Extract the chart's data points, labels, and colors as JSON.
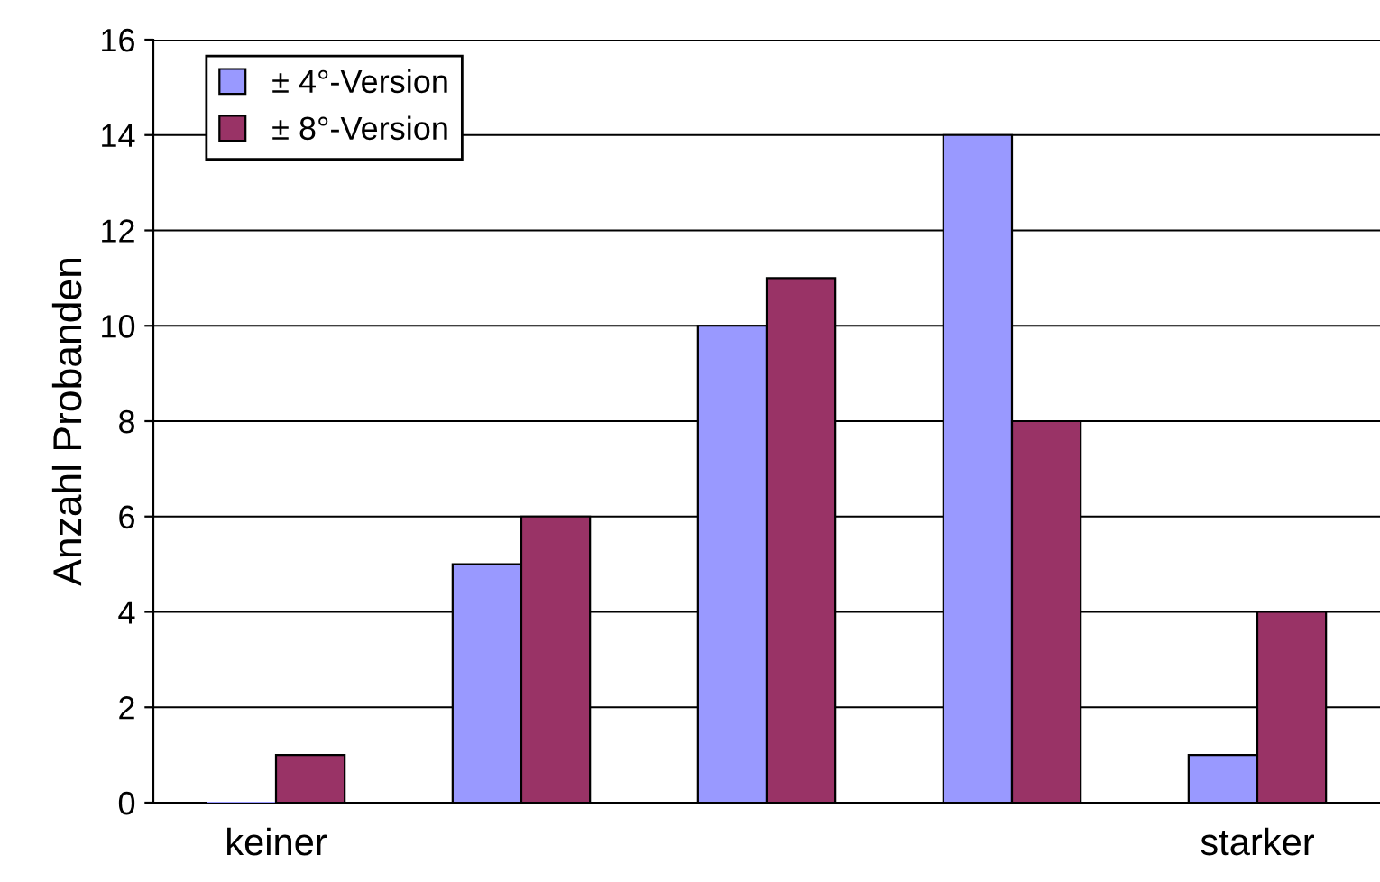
{
  "chart_data": {
    "type": "bar",
    "ylabel": "Anzahl Probanden",
    "categories": [
      "keiner",
      null,
      null,
      null,
      "starker"
    ],
    "series": [
      {
        "name": "± 4°-Version",
        "color": "#9999ff",
        "values": [
          0,
          5,
          10,
          14,
          1
        ]
      },
      {
        "name": "± 8°-Version",
        "color": "#993366",
        "values": [
          1,
          6,
          11,
          8,
          4
        ]
      }
    ],
    "ylim": [
      0,
      16
    ],
    "yticks": [
      0,
      2,
      4,
      6,
      8,
      10,
      12,
      14,
      16
    ],
    "grid": "y",
    "legend": "top left"
  }
}
